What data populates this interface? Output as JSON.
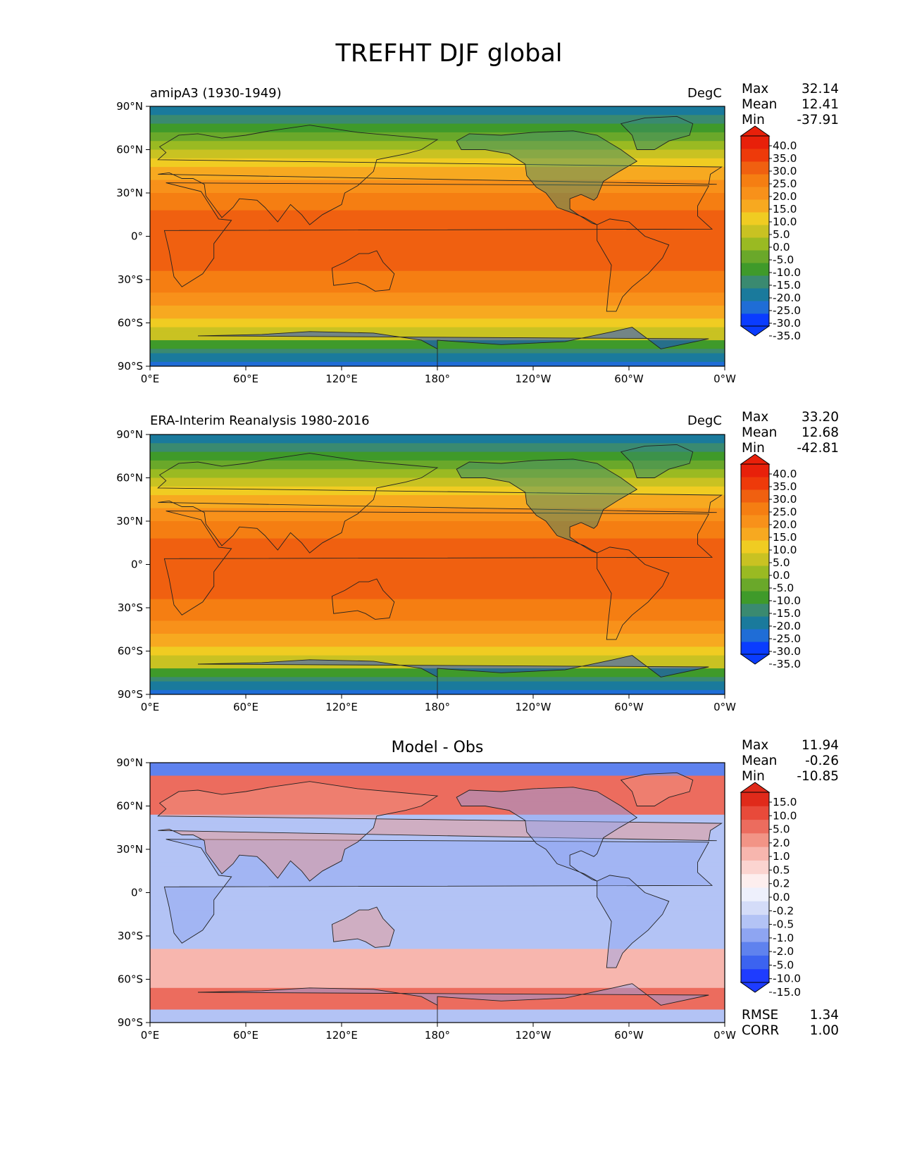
{
  "figure_title": "TREFHT DJF global",
  "panels": [
    {
      "left_title": "amipA3 (1930-1949)",
      "center_title": "",
      "units": "DegC",
      "stats": [
        {
          "label": "Max",
          "value": "32.14"
        },
        {
          "label": "Mean",
          "value": "12.41"
        },
        {
          "label": "Min",
          "value": "-37.91"
        }
      ],
      "colorbar_ticks": [
        "40.0",
        "35.0",
        "30.0",
        "25.0",
        "20.0",
        "15.0",
        "10.0",
        "5.0",
        "0.0",
        "-5.0",
        "-10.0",
        "-15.0",
        "-20.0",
        "-25.0",
        "-30.0",
        "-35.0"
      ],
      "extra_stats": []
    },
    {
      "left_title": "ERA-Interim Reanalysis 1980-2016",
      "center_title": "",
      "units": "DegC",
      "stats": [
        {
          "label": "Max",
          "value": "33.20"
        },
        {
          "label": "Mean",
          "value": "12.68"
        },
        {
          "label": "Min",
          "value": "-42.81"
        }
      ],
      "colorbar_ticks": [
        "40.0",
        "35.0",
        "30.0",
        "25.0",
        "20.0",
        "15.0",
        "10.0",
        "5.0",
        "0.0",
        "-5.0",
        "-10.0",
        "-15.0",
        "-20.0",
        "-25.0",
        "-30.0",
        "-35.0"
      ],
      "extra_stats": []
    },
    {
      "left_title": "",
      "center_title": "Model - Obs",
      "units": "",
      "stats": [
        {
          "label": "Max",
          "value": "11.94"
        },
        {
          "label": "Mean",
          "value": "-0.26"
        },
        {
          "label": "Min",
          "value": "-10.85"
        }
      ],
      "colorbar_ticks": [
        "15.0",
        "10.0",
        "5.0",
        "2.0",
        "1.0",
        "0.5",
        "0.2",
        "0.0",
        "-0.2",
        "-0.5",
        "-1.0",
        "-2.0",
        "-5.0",
        "-10.0",
        "-15.0"
      ],
      "extra_stats": [
        {
          "label": "RMSE",
          "value": "1.34"
        },
        {
          "label": "CORR",
          "value": "1.00"
        }
      ]
    }
  ],
  "x_ticks": [
    "0°E",
    "60°E",
    "120°E",
    "180°",
    "120°W",
    "60°W",
    "0°W"
  ],
  "y_ticks": [
    "90°N",
    "60°N",
    "30°N",
    "0°",
    "30°S",
    "60°S",
    "90°S"
  ],
  "colors": {
    "temp_scale": [
      "#0a3cff",
      "#1f6dd6",
      "#1a7a9c",
      "#3a8a70",
      "#3f9a2a",
      "#6aa82a",
      "#9aba22",
      "#c9c222",
      "#f0cc22",
      "#f7a920",
      "#f8911a",
      "#f57e12",
      "#f06010",
      "#ee3a0a",
      "#e8200a"
    ],
    "diff_scale": [
      "#1e3cff",
      "#3c63f0",
      "#5f82ee",
      "#8ea5f2",
      "#b3c3f5",
      "#d4dcf8",
      "#eef0fc",
      "#fdeeee",
      "#fbd4d0",
      "#f7b6ae",
      "#f29486",
      "#ec6c5e",
      "#e84a3a",
      "#e02a1a"
    ]
  },
  "chart_data": [
    {
      "type": "heatmap",
      "title": "amipA3 (1930-1949)",
      "units": "DegC",
      "x_range": [
        "0°E",
        "0°W"
      ],
      "y_range": [
        "90°S",
        "90°N"
      ],
      "colorbar": [
        -35.0,
        40.0
      ],
      "stats": {
        "Max": 32.14,
        "Mean": 12.41,
        "Min": -37.91
      }
    },
    {
      "type": "heatmap",
      "title": "ERA-Interim Reanalysis 1980-2016",
      "units": "DegC",
      "x_range": [
        "0°E",
        "0°W"
      ],
      "y_range": [
        "90°S",
        "90°N"
      ],
      "colorbar": [
        -35.0,
        40.0
      ],
      "stats": {
        "Max": 33.2,
        "Mean": 12.68,
        "Min": -42.81
      }
    },
    {
      "type": "heatmap",
      "title": "Model - Obs",
      "x_range": [
        "0°E",
        "0°W"
      ],
      "y_range": [
        "90°S",
        "90°N"
      ],
      "colorbar": [
        -15.0,
        15.0
      ],
      "stats": {
        "Max": 11.94,
        "Mean": -0.26,
        "Min": -10.85,
        "RMSE": 1.34,
        "CORR": 1.0
      }
    }
  ]
}
